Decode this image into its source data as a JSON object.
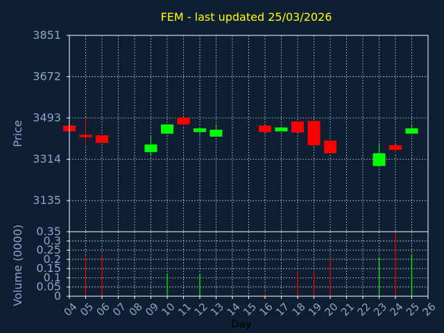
{
  "chart_data": {
    "type": "candlestick",
    "title": "FEM - last updated 25/03/2026",
    "xlabel": "Day",
    "ylabel": "Price",
    "volume_label": "Volume (0000)",
    "grid": true,
    "x_ticks": [
      "04",
      "05",
      "06",
      "07",
      "08",
      "09",
      "10",
      "11",
      "12",
      "13",
      "14",
      "15",
      "16",
      "17",
      "18",
      "19",
      "20",
      "21",
      "22",
      "23",
      "24",
      "25",
      "26"
    ],
    "price_ticks": [
      3135,
      3314,
      3493,
      3672,
      3851
    ],
    "price_range": [
      3000,
      3851
    ],
    "volume_ticks": [
      0,
      0.05,
      0.1,
      0.15,
      0.2,
      0.25,
      0.3,
      0.35
    ],
    "volume_range": [
      0,
      0.35
    ],
    "candles": [
      {
        "day": "04",
        "open": 3460,
        "close": 3435,
        "high": 3460,
        "low": 3435,
        "volume": 0
      },
      {
        "day": "05",
        "open": 3420,
        "close": 3410,
        "high": 3495,
        "low": 3370,
        "volume": 0.22
      },
      {
        "day": "06",
        "open": 3418,
        "close": 3385,
        "high": 3418,
        "low": 3385,
        "volume": 0.23
      },
      {
        "day": "09",
        "open": 3345,
        "close": 3378,
        "high": 3415,
        "low": 3330,
        "volume": 0
      },
      {
        "day": "10",
        "open": 3425,
        "close": 3465,
        "high": 3465,
        "low": 3425,
        "volume": 0.12
      },
      {
        "day": "11",
        "open": 3495,
        "close": 3465,
        "high": 3495,
        "low": 3460,
        "volume": 0
      },
      {
        "day": "12",
        "open": 3432,
        "close": 3448,
        "high": 3448,
        "low": 3420,
        "volume": 0.12
      },
      {
        "day": "13",
        "open": 3412,
        "close": 3442,
        "high": 3460,
        "low": 3412,
        "volume": 0
      },
      {
        "day": "16",
        "open": 3460,
        "close": 3432,
        "high": 3460,
        "low": 3432,
        "volume": 0.02
      },
      {
        "day": "17",
        "open": 3435,
        "close": 3452,
        "high": 3452,
        "low": 3435,
        "volume": 0
      },
      {
        "day": "18",
        "open": 3478,
        "close": 3430,
        "high": 3478,
        "low": 3430,
        "volume": 0.14
      },
      {
        "day": "19",
        "open": 3480,
        "close": 3375,
        "high": 3480,
        "low": 3375,
        "volume": 0.14
      },
      {
        "day": "20",
        "open": 3395,
        "close": 3340,
        "high": 3395,
        "low": 3340,
        "volume": 0.2
      },
      {
        "day": "23",
        "open": 3285,
        "close": 3340,
        "high": 3385,
        "low": 3285,
        "volume": 0.21
      },
      {
        "day": "24",
        "open": 3375,
        "close": 3355,
        "high": 3375,
        "low": 3340,
        "volume": 0.35
      },
      {
        "day": "25",
        "open": 3425,
        "close": 3448,
        "high": 3462,
        "low": 3425,
        "volume": 0.23
      }
    ],
    "colors": {
      "background": "#0f1f33",
      "title": "#ffff00",
      "axis_text": "#8aa6c8",
      "frame": "#ffffff",
      "up": "#00ff00",
      "down": "#ff0000",
      "grid": "#ffffff"
    }
  }
}
